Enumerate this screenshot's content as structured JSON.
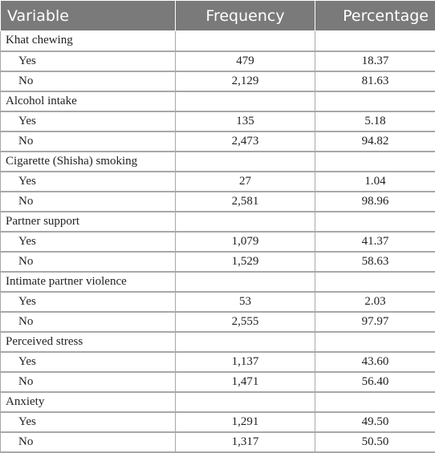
{
  "headers": [
    "Variable",
    "Frequency",
    "Percentage"
  ],
  "groups": [
    {
      "label": "Khat chewing",
      "rows": [
        {
          "label": "Yes",
          "frequency": "479",
          "percentage": "18.37"
        },
        {
          "label": "No",
          "frequency": "2,129",
          "percentage": "81.63"
        }
      ]
    },
    {
      "label": "Alcohol intake",
      "rows": [
        {
          "label": "Yes",
          "frequency": "135",
          "percentage": "5.18"
        },
        {
          "label": "No",
          "frequency": "2,473",
          "percentage": "94.82"
        }
      ]
    },
    {
      "label": "Cigarette (Shisha) smoking",
      "rows": [
        {
          "label": "Yes",
          "frequency": "27",
          "percentage": "1.04"
        },
        {
          "label": "No",
          "frequency": "2,581",
          "percentage": "98.96"
        }
      ]
    },
    {
      "label": "Partner support",
      "rows": [
        {
          "label": "Yes",
          "frequency": "1,079",
          "percentage": "41.37"
        },
        {
          "label": "No",
          "frequency": "1,529",
          "percentage": "58.63"
        }
      ]
    },
    {
      "label": "Intimate partner violence",
      "rows": [
        {
          "label": "Yes",
          "frequency": "53",
          "percentage": "2.03"
        },
        {
          "label": "No",
          "frequency": "2,555",
          "percentage": "97.97"
        }
      ]
    },
    {
      "label": "Perceived stress",
      "rows": [
        {
          "label": "Yes",
          "frequency": "1,137",
          "percentage": "43.60"
        },
        {
          "label": "No",
          "frequency": "1,471",
          "percentage": "56.40"
        }
      ]
    },
    {
      "label": "Anxiety",
      "rows": [
        {
          "label": "Yes",
          "frequency": "1,291",
          "percentage": "49.50"
        },
        {
          "label": "No",
          "frequency": "1,317",
          "percentage": "50.50"
        }
      ]
    }
  ]
}
